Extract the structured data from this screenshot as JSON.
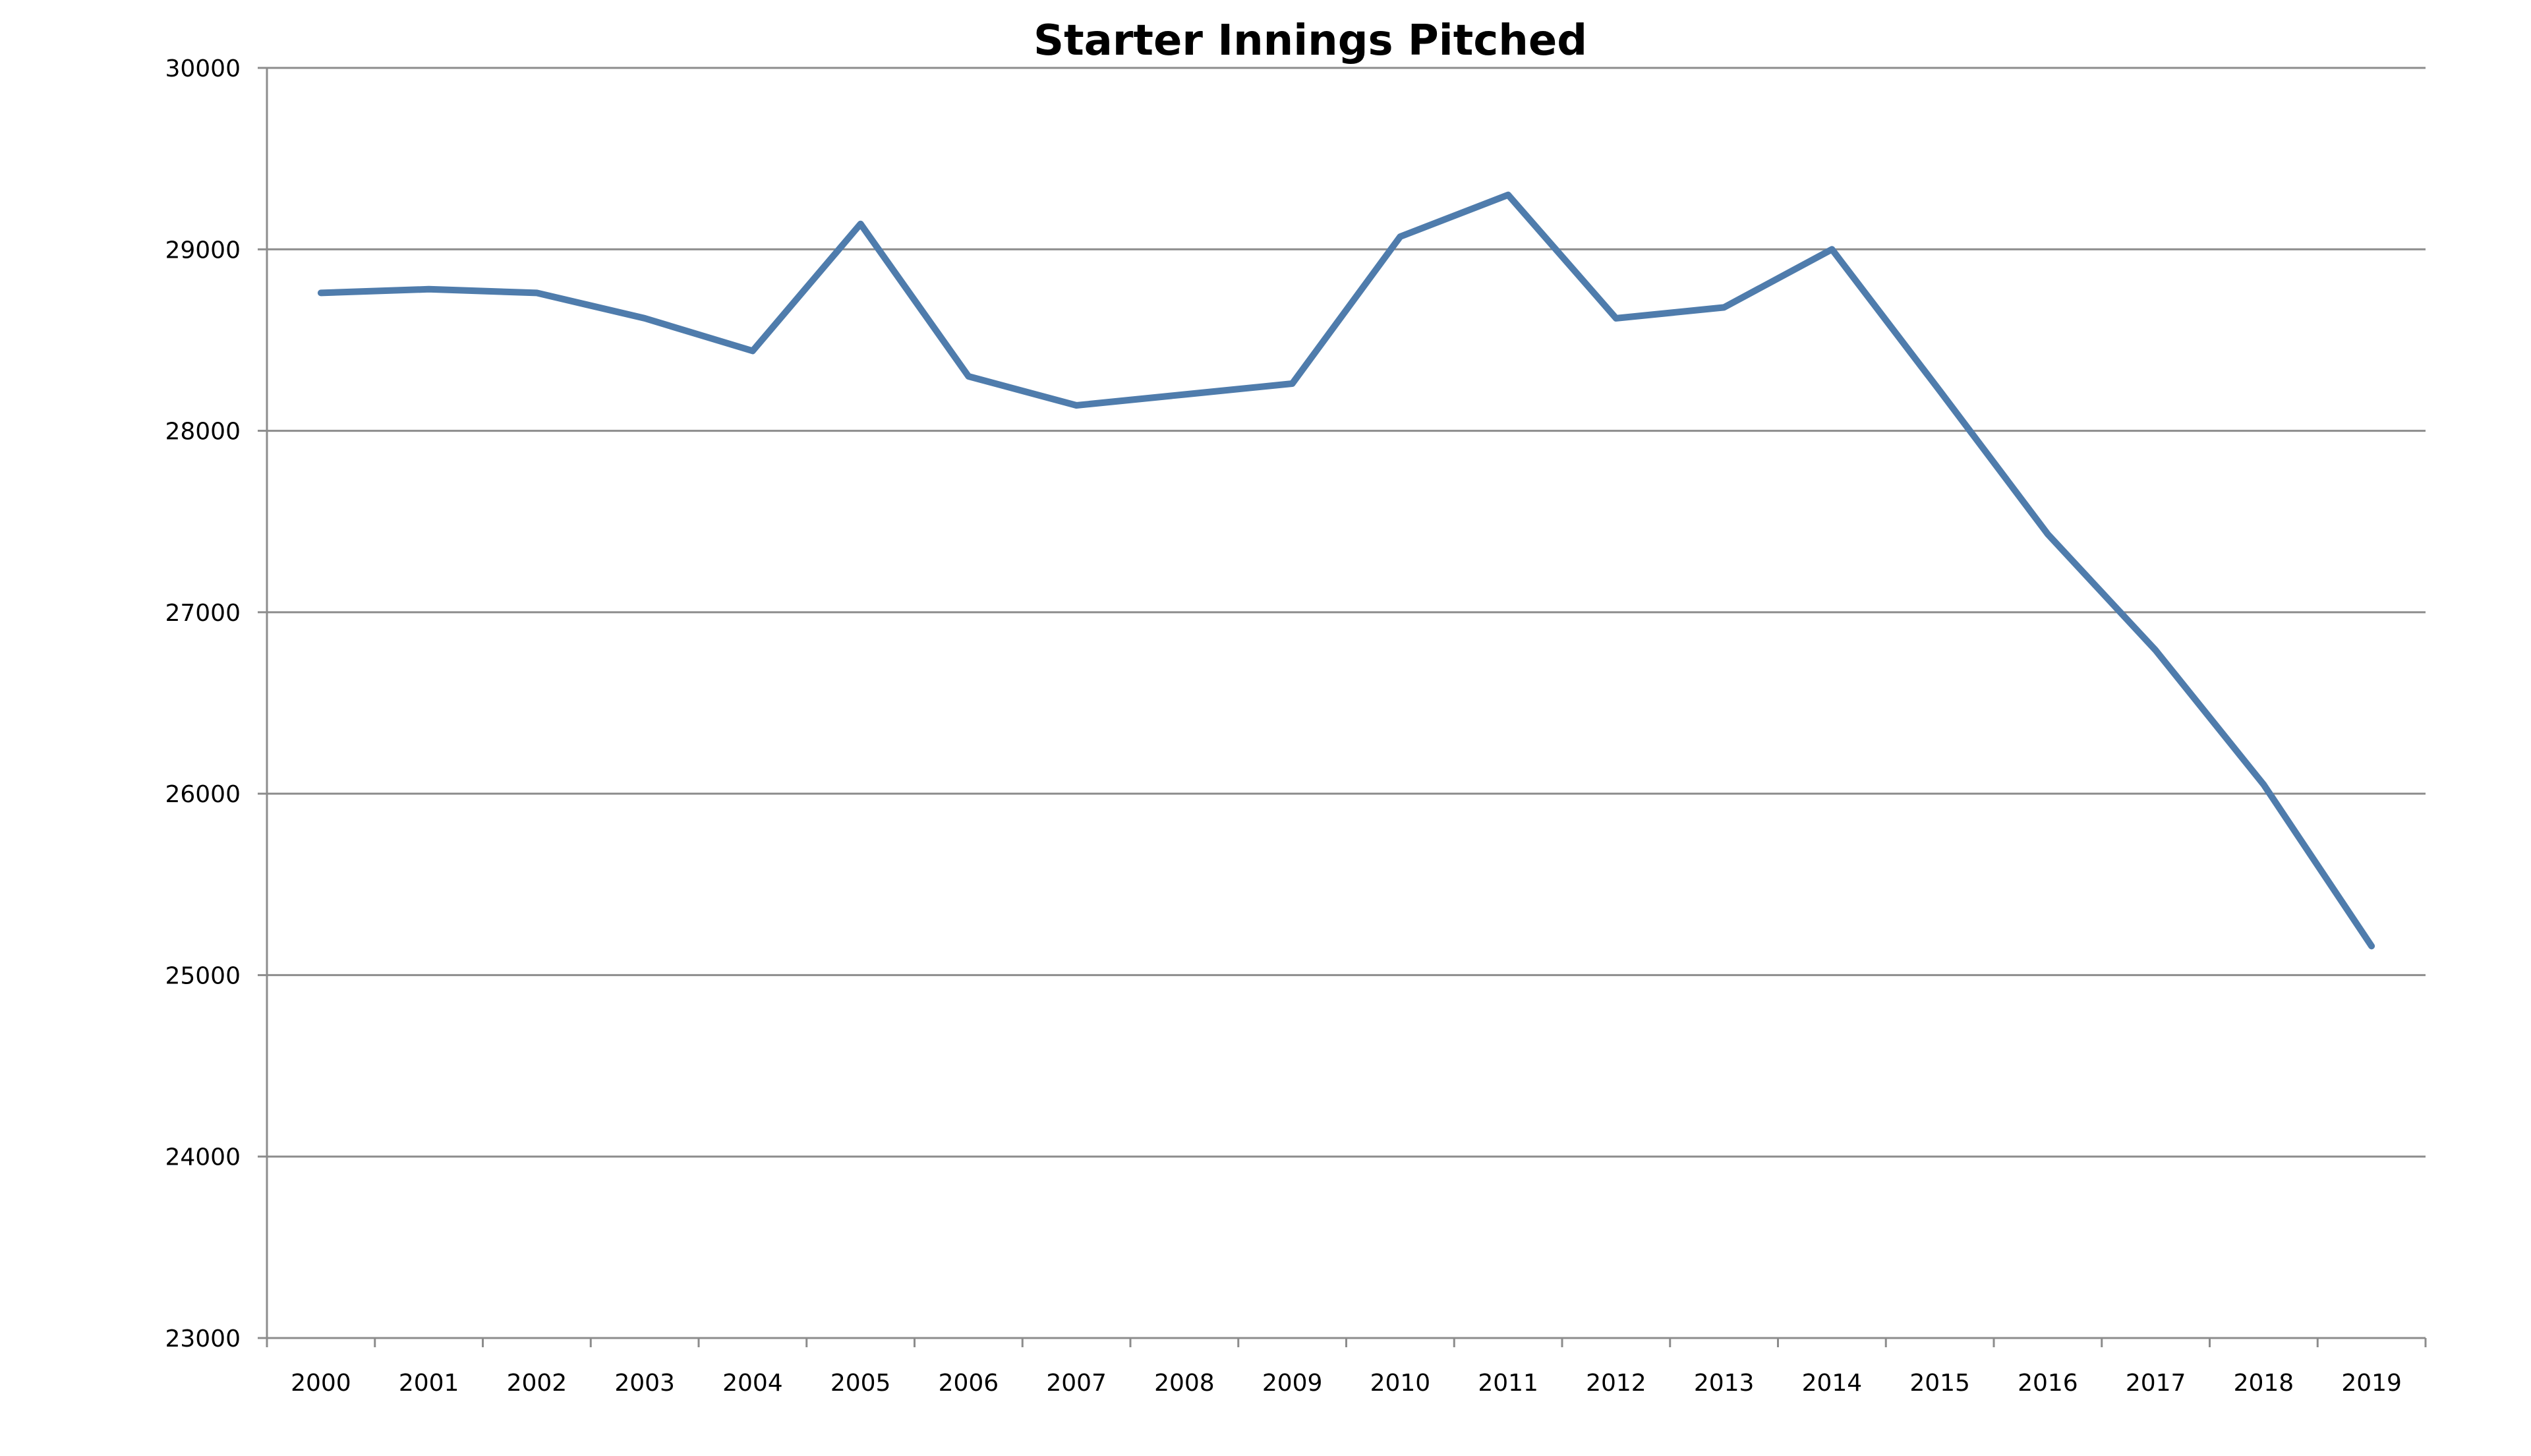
{
  "chart_data": {
    "type": "line",
    "title": "Starter Innings Pitched",
    "xlabel": "",
    "ylabel": "",
    "categories": [
      "2000",
      "2001",
      "2002",
      "2003",
      "2004",
      "2005",
      "2006",
      "2007",
      "2008",
      "2009",
      "2010",
      "2011",
      "2012",
      "2013",
      "2014",
      "2015",
      "2016",
      "2017",
      "2018",
      "2019"
    ],
    "series": [
      {
        "values": [
          28760,
          28780,
          28760,
          28620,
          28440,
          29140,
          28300,
          28140,
          28200,
          28260,
          29070,
          29300,
          28620,
          28680,
          29000,
          28220,
          27430,
          26790,
          26050,
          25160
        ],
        "color": "#4f7cac"
      }
    ],
    "ylim": [
      23000,
      30000
    ],
    "yticks": [
      "23000",
      "24000",
      "25000",
      "26000",
      "27000",
      "28000",
      "29000",
      "30000"
    ],
    "grid": true,
    "legend": "none"
  }
}
